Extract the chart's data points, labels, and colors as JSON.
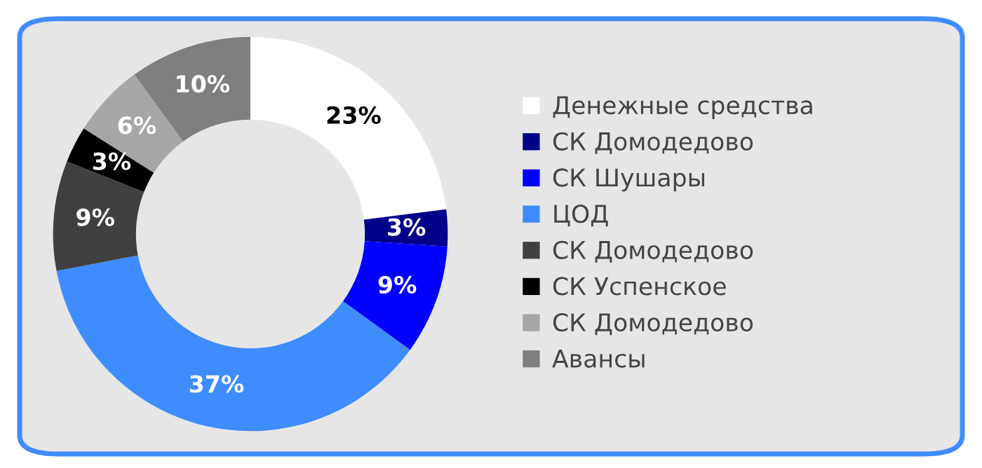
{
  "chart_data": {
    "type": "donut",
    "categories": [
      "Денежные средства",
      "СК Домодедово",
      "СК Шушары",
      "ЦОД",
      "СК Домодедово",
      "СК Успенское",
      "СК Домодедово",
      "Авансы"
    ],
    "values": [
      23,
      3,
      9,
      37,
      9,
      3,
      6,
      10
    ],
    "colors": [
      "#ffffff",
      "#00008b",
      "#0000ff",
      "#3f8cff",
      "#404040",
      "#000000",
      "#a6a6a6",
      "#7f7f7f"
    ],
    "value_labels": [
      "23%",
      "3%",
      "9%",
      "37%",
      "9%",
      "3%",
      "6%",
      "10%"
    ],
    "legend": "right"
  }
}
